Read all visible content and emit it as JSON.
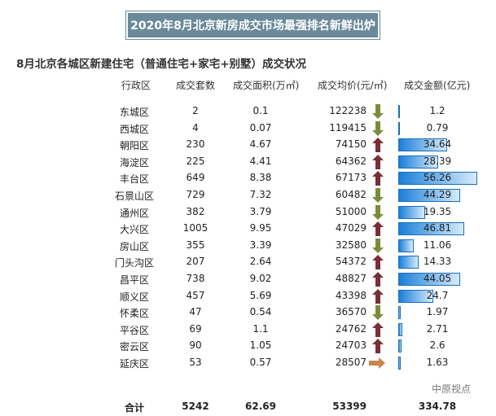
{
  "title": "2020年8月北京新房成交市场最强排名新鲜出炉",
  "subtitle": "8月北京各城区新建住宅（普通住宅+家宅+别墅）成交状况",
  "headers": [
    "行政区",
    "成交套数",
    "成交面积(万㎡)",
    "成交均价(元/㎡)",
    "成交金额(亿元)"
  ],
  "colors": {
    "title_bg": "#6a8a9a",
    "arrow_up": "#7a2e35",
    "arrow_down": "#7a8c3a",
    "arrow_flat": "#c8864a",
    "bar": "#1a7fd8"
  },
  "rows": [
    {
      "district": "东城区",
      "units": "2",
      "area": "0.1",
      "price": "122238",
      "trend": "down",
      "amount": "1.2"
    },
    {
      "district": "西城区",
      "units": "4",
      "area": "0.07",
      "price": "119415",
      "trend": "down",
      "amount": "0.79"
    },
    {
      "district": "朝阳区",
      "units": "230",
      "area": "4.67",
      "price": "74150",
      "trend": "up",
      "amount": "34.64"
    },
    {
      "district": "海淀区",
      "units": "225",
      "area": "4.41",
      "price": "64362",
      "trend": "up",
      "amount": "28.39"
    },
    {
      "district": "丰台区",
      "units": "649",
      "area": "8.38",
      "price": "67173",
      "trend": "up",
      "amount": "56.26"
    },
    {
      "district": "石景山区",
      "units": "729",
      "area": "7.32",
      "price": "60482",
      "trend": "down",
      "amount": "44.29"
    },
    {
      "district": "通州区",
      "units": "382",
      "area": "3.79",
      "price": "51000",
      "trend": "down",
      "amount": "19.35"
    },
    {
      "district": "大兴区",
      "units": "1005",
      "area": "9.95",
      "price": "47029",
      "trend": "up",
      "amount": "46.81"
    },
    {
      "district": "房山区",
      "units": "355",
      "area": "3.39",
      "price": "32580",
      "trend": "down",
      "amount": "11.06"
    },
    {
      "district": "门头沟区",
      "units": "207",
      "area": "2.64",
      "price": "54372",
      "trend": "up",
      "amount": "14.33"
    },
    {
      "district": "昌平区",
      "units": "738",
      "area": "9.02",
      "price": "48827",
      "trend": "up",
      "amount": "44.05"
    },
    {
      "district": "顺义区",
      "units": "457",
      "area": "5.69",
      "price": "43398",
      "trend": "up",
      "amount": "24.7"
    },
    {
      "district": "怀柔区",
      "units": "47",
      "area": "0.54",
      "price": "36570",
      "trend": "down",
      "amount": "1.97"
    },
    {
      "district": "平谷区",
      "units": "69",
      "area": "1.1",
      "price": "24762",
      "trend": "up",
      "amount": "2.71"
    },
    {
      "district": "密云区",
      "units": "90",
      "area": "1.05",
      "price": "24703",
      "trend": "up",
      "amount": "2.6"
    },
    {
      "district": "延庆区",
      "units": "53",
      "area": "0.57",
      "price": "28507",
      "trend": "flat",
      "amount": "1.63"
    }
  ],
  "total": {
    "label": "合计",
    "units": "5242",
    "area": "62.69",
    "price": "53399",
    "amount": "334.78"
  },
  "watermark": "中原视点"
}
